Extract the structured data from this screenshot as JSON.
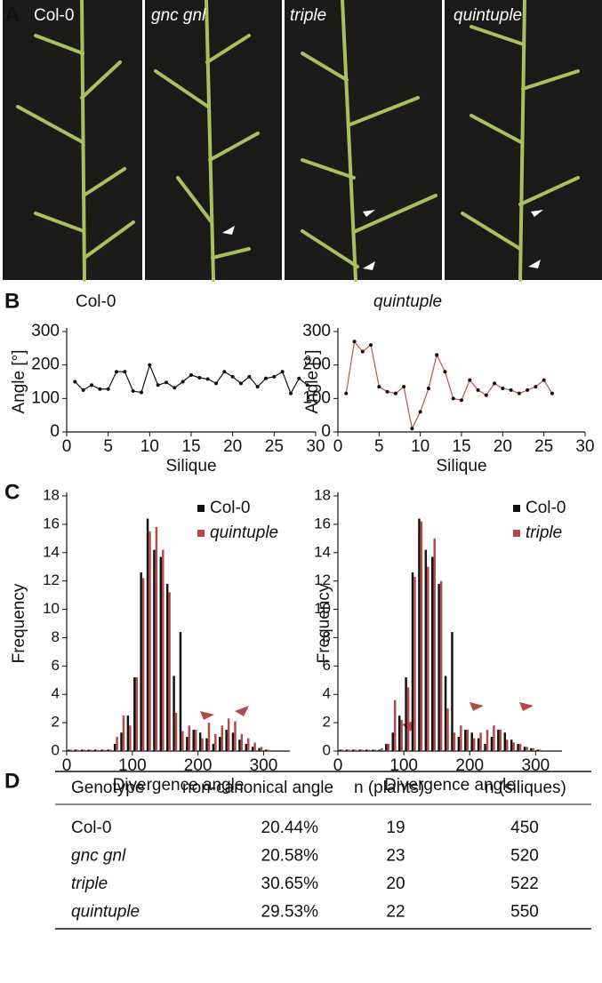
{
  "panel_labels": [
    "A",
    "B",
    "C",
    "D"
  ],
  "photos": [
    {
      "label": "Col-0"
    },
    {
      "label": "gnc gnl"
    },
    {
      "label": "triple"
    },
    {
      "label": "quintuple"
    }
  ],
  "chart_data": [
    {
      "type": "line",
      "title": "Col-0",
      "xlabel": "Silique",
      "ylabel": "Angle [°]",
      "color": "#111111",
      "x": [
        1,
        2,
        3,
        4,
        5,
        6,
        7,
        8,
        9,
        10,
        11,
        12,
        13,
        14,
        15,
        16,
        17,
        18,
        19,
        20,
        21,
        22,
        23,
        24,
        25,
        26,
        27,
        28,
        29
      ],
      "values": [
        150,
        125,
        140,
        128,
        128,
        180,
        180,
        122,
        118,
        200,
        140,
        148,
        132,
        150,
        170,
        162,
        158,
        145,
        180,
        165,
        145,
        165,
        135,
        160,
        165,
        180,
        115,
        160,
        140
      ],
      "xlim": [
        0,
        30
      ],
      "xticks": [
        0,
        5,
        10,
        15,
        20,
        25,
        30
      ],
      "ylim": [
        0,
        300
      ],
      "yticks": [
        0,
        100,
        200,
        300
      ]
    },
    {
      "type": "line",
      "title": "quintuple",
      "xlabel": "Silique",
      "ylabel": "Angle [°]",
      "color": "#c0504d",
      "x": [
        1,
        2,
        3,
        4,
        5,
        6,
        7,
        8,
        9,
        10,
        11,
        12,
        13,
        14,
        15,
        16,
        17,
        18,
        19,
        20,
        21,
        22,
        23,
        24,
        25,
        26
      ],
      "values": [
        115,
        270,
        240,
        260,
        135,
        120,
        115,
        135,
        10,
        60,
        130,
        230,
        180,
        100,
        95,
        155,
        125,
        110,
        145,
        130,
        125,
        115,
        125,
        135,
        155,
        115
      ],
      "xlim": [
        0,
        30
      ],
      "xticks": [
        0,
        5,
        10,
        15,
        20,
        25,
        30
      ],
      "ylim": [
        0,
        300
      ],
      "yticks": [
        0,
        100,
        200,
        300
      ]
    },
    {
      "type": "histogram",
      "xlabel": "Divergence angle",
      "ylabel": "Frequency",
      "bins": [
        0,
        10,
        20,
        30,
        40,
        50,
        60,
        70,
        80,
        90,
        100,
        110,
        120,
        130,
        140,
        150,
        160,
        170,
        180,
        190,
        200,
        210,
        220,
        230,
        240,
        250,
        260,
        270,
        280,
        290,
        300,
        310,
        320,
        330,
        340
      ],
      "series": [
        {
          "name": "Col-0",
          "color": "#111111",
          "values": [
            0.1,
            0.1,
            0.1,
            0.1,
            0.1,
            0.1,
            0.1,
            0.5,
            1.3,
            2.5,
            5.2,
            12.6,
            16.4,
            14.2,
            13.7,
            11.8,
            5.3,
            8.4,
            1.0,
            1.5,
            1.3,
            0.9,
            0.5,
            1.0,
            1.5,
            1.3,
            0.8,
            0.5,
            0.3,
            0.2,
            0.1,
            0,
            0,
            0
          ]
        },
        {
          "name": "quintuple",
          "color": "#b24a47",
          "values": [
            0.1,
            0.1,
            0.1,
            0.1,
            0.1,
            0.1,
            0.1,
            1.0,
            2.5,
            1.8,
            5.2,
            12.2,
            15.5,
            15.8,
            14.2,
            11.2,
            2.7,
            1.4,
            1.8,
            1.5,
            0.9,
            2.0,
            1.2,
            1.8,
            2.3,
            2.1,
            1.2,
            0.9,
            0.6,
            0.3,
            0.1,
            0,
            0,
            0
          ]
        }
      ],
      "xlim": [
        0,
        340
      ],
      "xticks": [
        0,
        100,
        200,
        300
      ],
      "ylim": [
        0,
        18
      ],
      "yticks": [
        0,
        2,
        4,
        6,
        8,
        10,
        12,
        14,
        16,
        18
      ]
    },
    {
      "type": "histogram",
      "xlabel": "Divergence angle",
      "ylabel": "Frequency",
      "bins": [
        0,
        10,
        20,
        30,
        40,
        50,
        60,
        70,
        80,
        90,
        100,
        110,
        120,
        130,
        140,
        150,
        160,
        170,
        180,
        190,
        200,
        210,
        220,
        230,
        240,
        250,
        260,
        270,
        280,
        290,
        300,
        310,
        320,
        330,
        340
      ],
      "series": [
        {
          "name": "Col-0",
          "color": "#111111",
          "values": [
            0.1,
            0.1,
            0.1,
            0.1,
            0.1,
            0.1,
            0.1,
            0.5,
            1.3,
            2.5,
            5.2,
            12.6,
            16.4,
            14.2,
            13.7,
            11.8,
            5.3,
            8.4,
            1.0,
            1.5,
            1.3,
            0.9,
            0.5,
            1.0,
            1.5,
            1.3,
            0.8,
            0.5,
            0.3,
            0.2,
            0.1,
            0,
            0,
            0
          ]
        },
        {
          "name": "triple",
          "color": "#b24a47",
          "values": [
            0.1,
            0.1,
            0.1,
            0.1,
            0.1,
            0.1,
            0.2,
            0.5,
            3.6,
            2.2,
            4.5,
            12.3,
            16.2,
            13.0,
            15.0,
            12.0,
            3.0,
            1.3,
            1.8,
            1.5,
            0.9,
            1.3,
            1.5,
            1.8,
            1.5,
            0.8,
            0.6,
            0.5,
            0.3,
            0.2,
            0.1,
            0,
            0,
            0
          ]
        }
      ],
      "xlim": [
        0,
        340
      ],
      "xticks": [
        0,
        100,
        200,
        300
      ],
      "ylim": [
        0,
        18
      ],
      "yticks": [
        0,
        2,
        4,
        6,
        8,
        10,
        12,
        14,
        16,
        18
      ]
    }
  ],
  "table": {
    "header": [
      "Genotype",
      "non-canonical angle",
      "n (plants)",
      "n (siliques)"
    ],
    "rows": [
      [
        "Col-0",
        "20.44%",
        19,
        450
      ],
      [
        "gnc gnl",
        "20.58%",
        23,
        520
      ],
      [
        "triple",
        "30.65%",
        20,
        522
      ],
      [
        "quintuple",
        "29.53%",
        22,
        550
      ]
    ]
  }
}
